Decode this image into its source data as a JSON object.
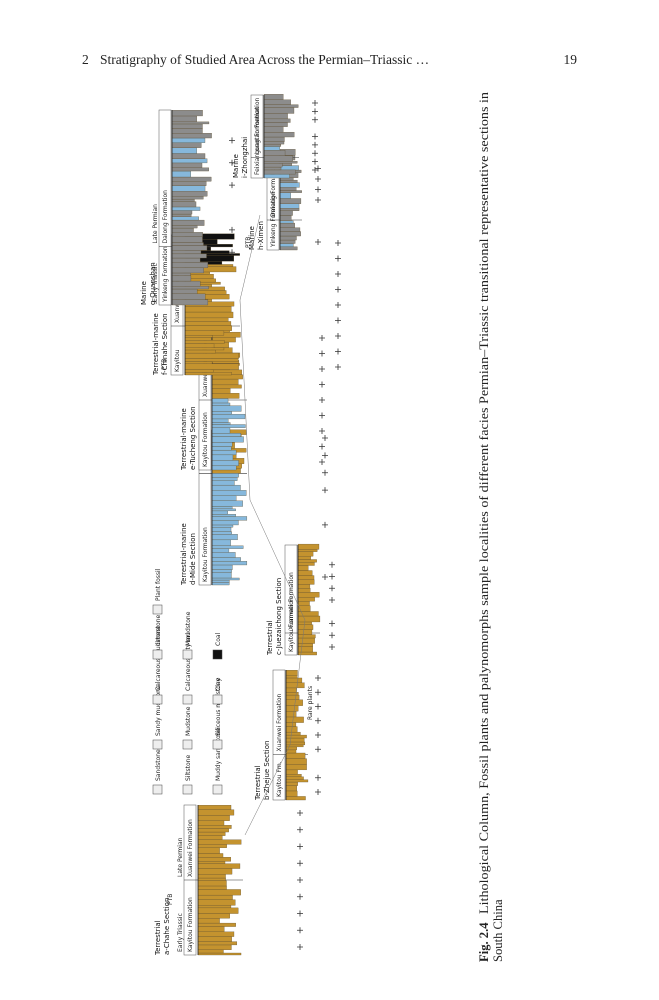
{
  "header": {
    "chapter": "2",
    "title": "Stratigraphy of Studied Area Across the Permian–Triassic …",
    "page_number": "19"
  },
  "figure": {
    "sections": [
      {
        "facies": "Terrestrial",
        "name": "a-Chahe Section",
        "formations": [
          "Kayitou Formation",
          "Xuanwei Formation"
        ],
        "periods": [
          "Early Triassic",
          "Late Permian"
        ]
      },
      {
        "facies": "Terrestrial",
        "name": "b-Zhejue Section",
        "formations": [
          "Kayitou Fm.",
          "Xuanwei Formation"
        ]
      },
      {
        "facies": "Terrestrial",
        "name": "c-Juezaichong Section",
        "formations": [
          "Kayitou Formation",
          "Xuanwei Formation"
        ]
      },
      {
        "facies": "Terrestrial-marine",
        "name": "d-Mide Section",
        "formations": [
          "Kayitou Formation",
          "Xuanwei Formation"
        ]
      },
      {
        "facies": "Terrestrial-marine",
        "name": "e-Tucheng Section",
        "formations": [
          "Kayitou Formation",
          "Xuanwei Formation"
        ]
      },
      {
        "facies": "Terrestrial-marine",
        "name": "f-Chinahe Section",
        "formations": [
          "Kayitou",
          "Xuanwei Formation"
        ]
      },
      {
        "facies": "Marine",
        "name": "g-Quanshan",
        "formations": [
          "Yinkeng Formation",
          "Dalong Formation"
        ],
        "periods": [
          "Early Triassic",
          "Late Permian"
        ]
      },
      {
        "facies": "Marine",
        "name": "h-Ximen",
        "formations": [
          "Yinkeng Formation",
          "Dalong Formation"
        ]
      },
      {
        "facies": "Marine",
        "name": "i-Zhongzhai",
        "formations": [
          "Feixianguan Formation",
          "Longtan Formation"
        ]
      }
    ],
    "legend": [
      "Sandstone",
      "Siltstone",
      "Muddy sandstone",
      "Sandy mudstone",
      "Mudstone",
      "Siliceous mudstone",
      "Calcareous mudstone",
      "Calcareous silty mudstone",
      "Clay",
      "Limestone",
      "Marl",
      "Coal",
      "Plant fossil"
    ],
    "annotations": {
      "boundary": "PTB",
      "rare": "Rare plants"
    }
  },
  "caption": {
    "label": "Fig. 2.4",
    "lines": [
      "Lithological Column, Fossil plants and palynomorphs sample localities of different facies Permian–Triassic transitional representative sections in",
      "South China"
    ]
  }
}
